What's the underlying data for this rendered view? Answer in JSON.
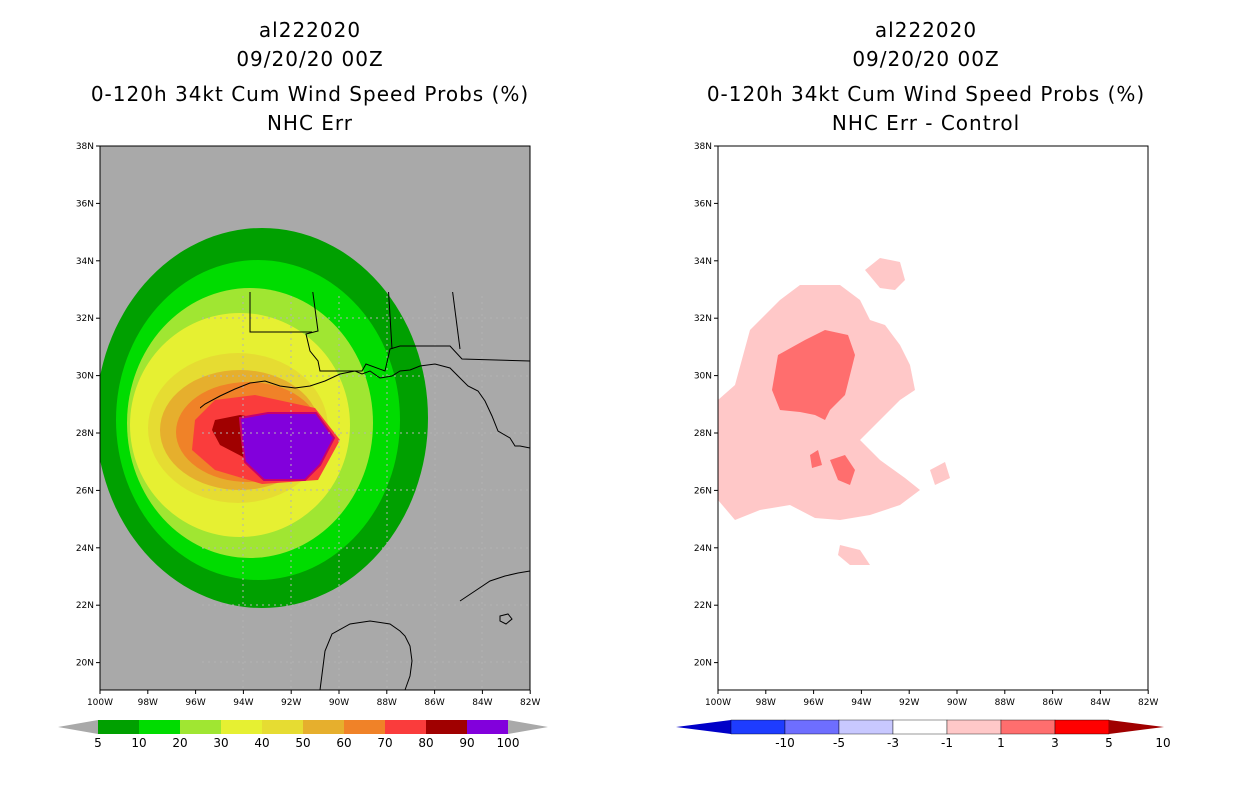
{
  "left_panel": {
    "title_lines": [
      "al222020",
      "09/20/20 00Z",
      "0-120h 34kt Cum Wind Speed Probs (%)",
      "NHC Err"
    ],
    "colorbar": {
      "labels": [
        "5",
        "10",
        "20",
        "30",
        "40",
        "50",
        "60",
        "70",
        "80",
        "90",
        "100"
      ],
      "colors": [
        "#00a000",
        "#00dc00",
        "#a0e632",
        "#e6f032",
        "#e6dc32",
        "#e6af2d",
        "#f08228",
        "#fa3c3c",
        "#a00000",
        "#8200dc"
      ]
    }
  },
  "right_panel": {
    "title_lines": [
      "al222020",
      "09/20/20 00Z",
      "0-120h 34kt Cum Wind Speed Probs (%)",
      "NHC Err - Control"
    ],
    "colorbar": {
      "labels": [
        "-10",
        "-5",
        "-3",
        "-1",
        "1",
        "3",
        "5",
        "10"
      ],
      "colors": [
        "#0000c8",
        "#1e3cff",
        "#6e6eff",
        "#c8c8ff",
        "#ffffff",
        "#ffc8c8",
        "#ff6e6e",
        "#ff0000",
        "#a00000"
      ]
    }
  },
  "axes": {
    "lat_labels": [
      "38N",
      "36N",
      "34N",
      "32N",
      "30N",
      "28N",
      "26N",
      "24N",
      "22N",
      "20N"
    ],
    "lon_labels": [
      "100W",
      "98W",
      "96W",
      "94W",
      "92W",
      "90W",
      "88W",
      "86W",
      "84W",
      "82W"
    ]
  }
}
